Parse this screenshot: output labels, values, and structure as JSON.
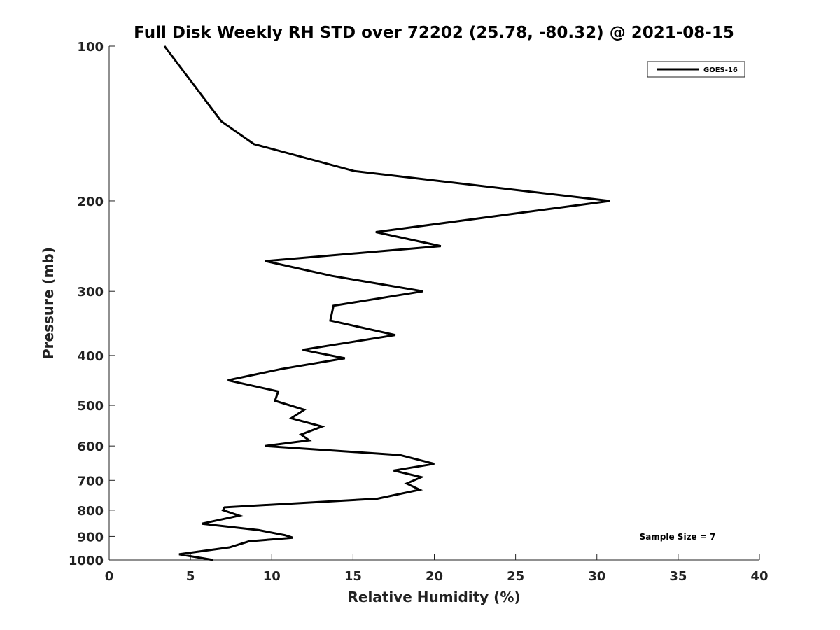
{
  "chart_data": {
    "type": "line",
    "title": "Full Disk Weekly RH STD over 72202 (25.78, -80.32) @ 2021-08-15",
    "xlabel": "Relative Humidity (%)",
    "ylabel": "Pressure (mb)",
    "xlim": [
      0,
      40
    ],
    "ylim": [
      100,
      1000
    ],
    "yscale": "log",
    "y_reversed": true,
    "grid": false,
    "legend_position": "top-right",
    "x_ticks": [
      0,
      5,
      10,
      15,
      20,
      25,
      30,
      35,
      40
    ],
    "x_tick_labels": [
      "0",
      "5",
      "10",
      "15",
      "20",
      "25",
      "30",
      "35",
      "40"
    ],
    "y_ticks": [
      100,
      200,
      300,
      400,
      500,
      600,
      700,
      800,
      900,
      1000
    ],
    "y_tick_labels": [
      "100",
      "200",
      "300",
      "400",
      "500",
      "600",
      "700",
      "800",
      "900",
      "1000"
    ],
    "annotation": "Sample Size = 7",
    "series": [
      {
        "name": "GOES-16",
        "color": "#000000",
        "x": [
          3.4,
          6.9,
          8.9,
          15.1,
          30.8,
          16.4,
          20.4,
          9.6,
          13.7,
          19.3,
          13.8,
          13.6,
          17.6,
          11.9,
          14.5,
          10.6,
          7.3,
          10.4,
          10.2,
          12.0,
          11.2,
          13.1,
          11.8,
          12.3,
          9.6,
          17.9,
          20.0,
          17.5,
          19.2,
          18.3,
          19.1,
          16.5,
          7.1,
          7.0,
          8.0,
          5.7,
          9.2,
          10.8,
          11.3,
          8.6,
          7.4,
          4.3,
          6.4
        ],
        "y": [
          100,
          140,
          155,
          175,
          200,
          230,
          245,
          262,
          280,
          300,
          320,
          342,
          365,
          390,
          405,
          425,
          447,
          470,
          490,
          510,
          530,
          550,
          570,
          585,
          600,
          625,
          650,
          670,
          690,
          710,
          730,
          760,
          790,
          800,
          820,
          850,
          875,
          895,
          905,
          920,
          945,
          975,
          1000
        ]
      }
    ]
  }
}
